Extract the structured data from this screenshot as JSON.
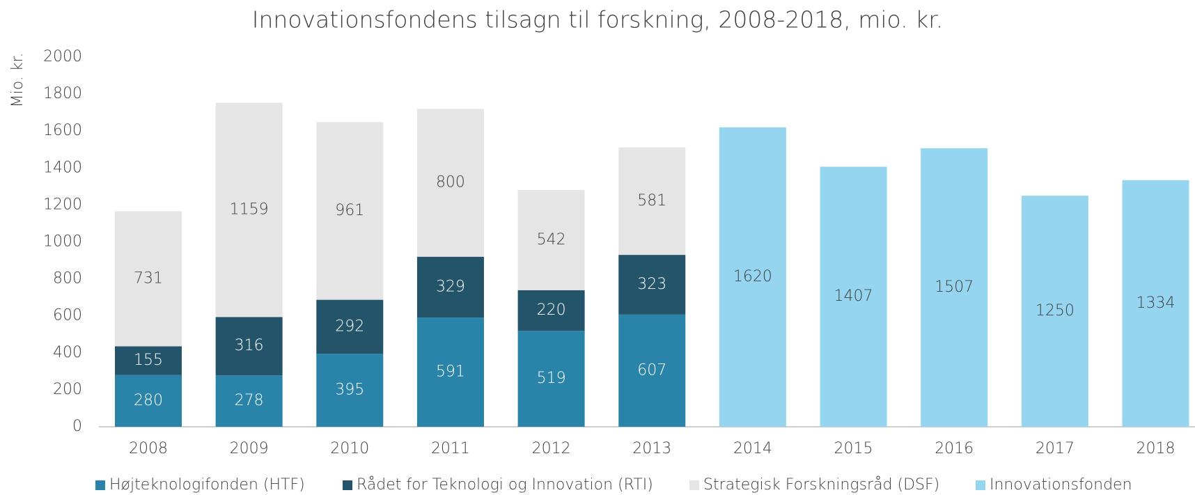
{
  "chart_data": {
    "type": "stacked_bar",
    "title": "Innovationsfondens tilsagn til forskning, 2008-2018, mio. kr.",
    "y_label": "Mio. kr.",
    "categories": [
      "2008",
      "2009",
      "2010",
      "2011",
      "2012",
      "2013",
      "2014",
      "2015",
      "2016",
      "2017",
      "2018"
    ],
    "series": [
      {
        "name": "Højteknologifonden (HTF)",
        "color": "#2a83a8",
        "values": [
          280,
          278,
          395,
          591,
          519,
          607,
          null,
          null,
          null,
          null,
          null
        ]
      },
      {
        "name": "Rådet for Teknologi og Innovation (RTI)",
        "color": "#245469",
        "values": [
          155,
          316,
          292,
          329,
          220,
          323,
          null,
          null,
          null,
          null,
          null
        ]
      },
      {
        "name": "Strategisk Forskningsråd (DSF)",
        "color": "#e5e5e5",
        "values": [
          731,
          1159,
          961,
          800,
          542,
          581,
          null,
          null,
          null,
          null,
          null
        ]
      },
      {
        "name": "Innovationsfonden",
        "color": "#96d5f0",
        "values": [
          null,
          null,
          null,
          null,
          null,
          null,
          1620,
          1407,
          1507,
          1250,
          1334
        ]
      }
    ],
    "ylim": [
      0,
      2000
    ],
    "yticks": [
      0,
      200,
      400,
      600,
      800,
      1000,
      1200,
      1400,
      1600,
      1800,
      2000
    ],
    "grid": false,
    "legend": "bottom"
  }
}
